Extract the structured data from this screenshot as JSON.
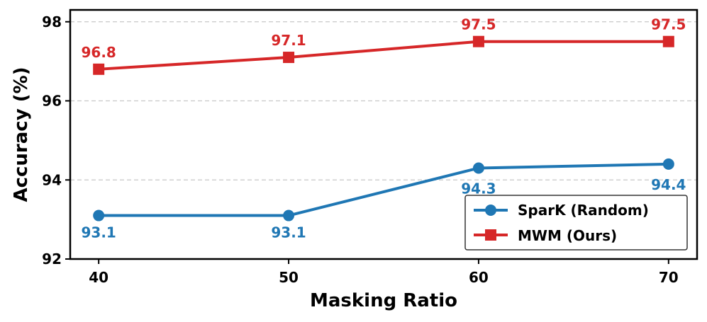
{
  "chart_data": {
    "type": "line",
    "xlabel": "Masking Ratio",
    "ylabel": "Accuracy (%)",
    "x": [
      40,
      50,
      60,
      70
    ],
    "xticks": [
      "40",
      "50",
      "60",
      "70"
    ],
    "xlim": [
      38.5,
      71.5
    ],
    "ylim": [
      92,
      98.3
    ],
    "yticks": [
      "92",
      "94",
      "96",
      "98"
    ],
    "grid": "horizontal dashed",
    "legend_position": "lower-right",
    "series": [
      {
        "name": "SparK (Random)",
        "values": [
          93.1,
          93.1,
          94.3,
          94.4
        ],
        "labels": [
          "93.1",
          "93.1",
          "94.3",
          "94.4"
        ],
        "color": "#1f77b4",
        "marker": "circle"
      },
      {
        "name": "MWM (Ours)",
        "values": [
          96.8,
          97.1,
          97.5,
          97.5
        ],
        "labels": [
          "96.8",
          "97.1",
          "97.5",
          "97.5"
        ],
        "color": "#d62728",
        "marker": "square"
      }
    ]
  }
}
